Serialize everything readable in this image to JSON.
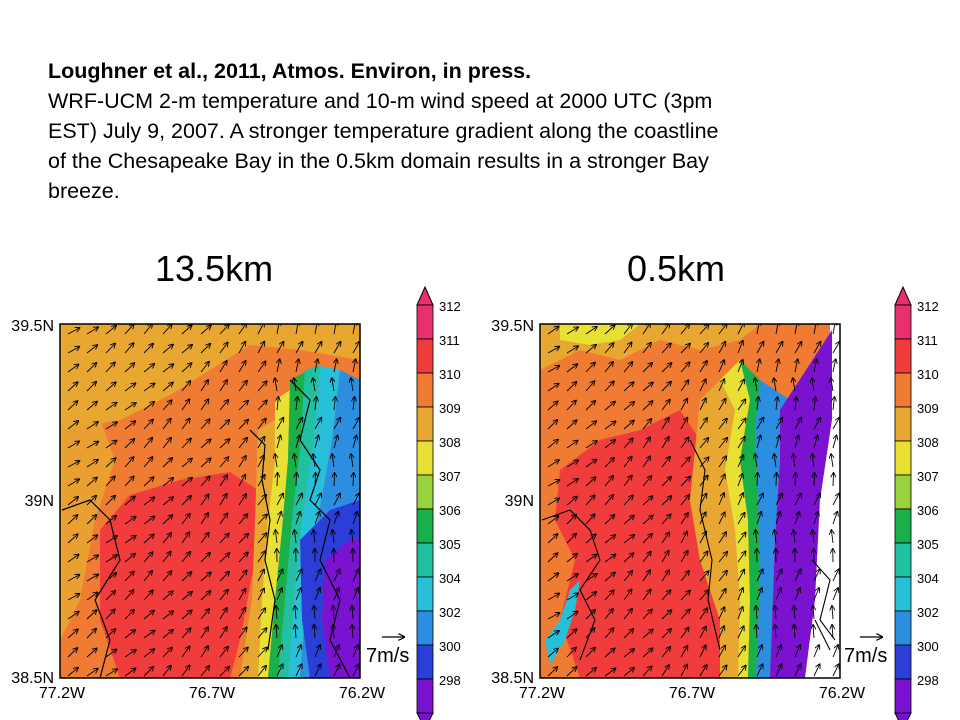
{
  "caption": {
    "citation": "Loughner et al., 2011, Atmos. Environ, in press.",
    "line1": "WRF-UCM 2-m temperature and 10-m wind speed at 2000 UTC (3pm",
    "line2": "EST) July 9, 2007.  A stronger temperature gradient along the coastline",
    "line3": "of the Chesapeake Bay in the 0.5km domain results in a stronger Bay",
    "line4": "breeze."
  },
  "panels": [
    {
      "title": "13.5km",
      "y_ticks": [
        "39.5N",
        "39N",
        "38.5N"
      ],
      "x_ticks": [
        "77.2W",
        "76.7W",
        "76.2W"
      ],
      "ref_vector_label": "7m/s",
      "colorbar": {
        "levels": [
          "312",
          "311",
          "310",
          "309",
          "308",
          "307",
          "306",
          "305",
          "304",
          "302",
          "300",
          "298"
        ]
      }
    },
    {
      "title": "0.5km",
      "y_ticks": [
        "39.5N",
        "39N",
        "38.5N"
      ],
      "x_ticks": [
        "77.2W",
        "76.7W",
        "76.2W"
      ],
      "ref_vector_label": "7m/s",
      "colorbar": {
        "levels": [
          "312",
          "311",
          "310",
          "309",
          "308",
          "307",
          "306",
          "305",
          "304",
          "302",
          "300",
          "298"
        ]
      }
    }
  ],
  "colors": {
    "c312": "#e8306e",
    "c311": "#f03c3c",
    "c310": "#f07b33",
    "c309": "#e8a730",
    "c308": "#e8e032",
    "c307": "#98d23c",
    "c306": "#19b04a",
    "c305": "#21c0a0",
    "c304": "#28c0d8",
    "c302": "#2b8ee0",
    "c300": "#2b3fd8",
    "c298": "#7a12d0"
  }
}
